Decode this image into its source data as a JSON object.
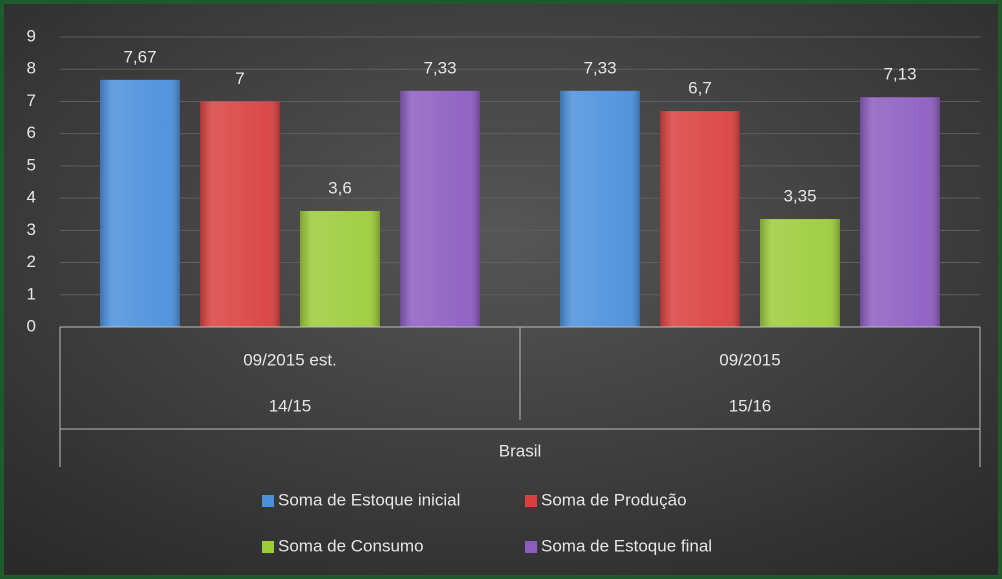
{
  "chart_data": {
    "type": "bar",
    "categories": [
      "09/2015 est.",
      "09/2015"
    ],
    "subcategories": [
      "14/15",
      "15/16"
    ],
    "group_label": "Brasil",
    "series": [
      {
        "name": "Soma de Estoque inicial",
        "color": "#4a8fdc",
        "values": [
          7.67,
          7.33
        ],
        "value_labels": [
          "7,67",
          "7,33"
        ]
      },
      {
        "name": "Soma de Produção",
        "color": "#d9403f",
        "values": [
          7,
          6.7
        ],
        "value_labels": [
          "7",
          "6,7"
        ]
      },
      {
        "name": "Soma de Consumo",
        "color": "#9ccc3a",
        "values": [
          3.6,
          3.35
        ],
        "value_labels": [
          "3,6",
          "3,35"
        ]
      },
      {
        "name": "Soma de Estoque final",
        "color": "#8c5cc0",
        "values": [
          7.33,
          7.13
        ],
        "value_labels": [
          "7,33",
          "7,13"
        ]
      }
    ],
    "ylim": [
      0,
      9
    ],
    "yticks": [
      0,
      1,
      2,
      3,
      4,
      5,
      6,
      7,
      8,
      9
    ],
    "grid": true
  }
}
